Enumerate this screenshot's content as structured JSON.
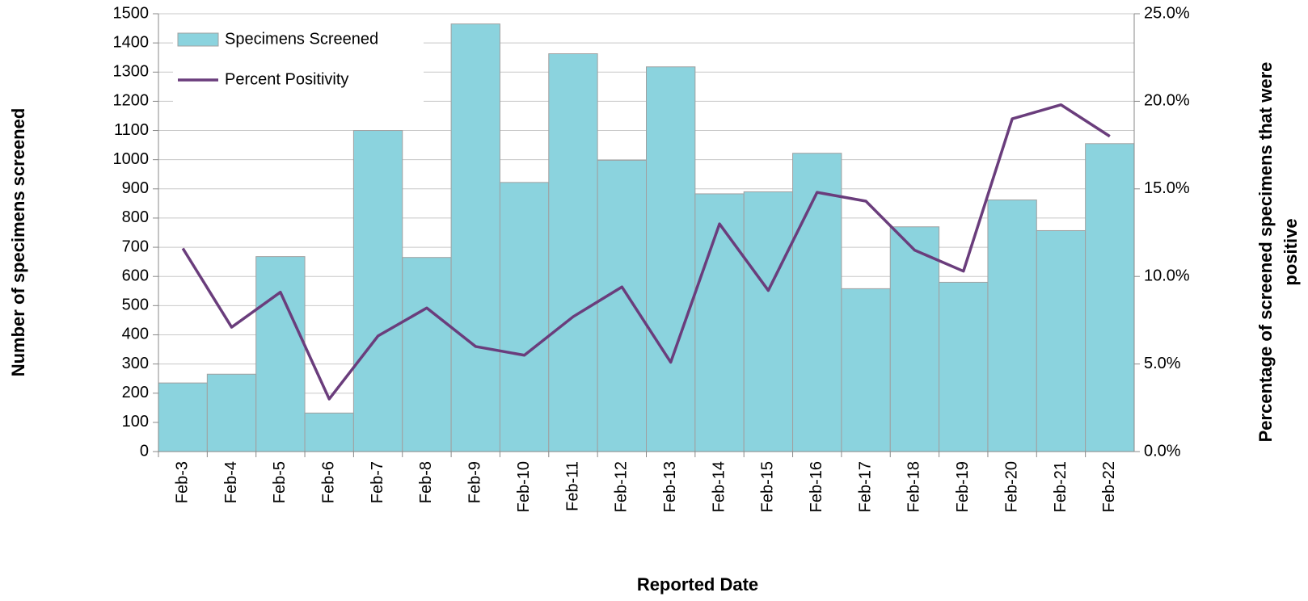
{
  "chart_data": {
    "type": "bar+line",
    "x_label": "Reported Date",
    "y_label": "Number of specimens screened",
    "y2_label": [
      "Percentage of screened specimens that were",
      "positive"
    ],
    "categories": [
      "Feb-3",
      "Feb-4",
      "Feb-5",
      "Feb-6",
      "Feb-7",
      "Feb-8",
      "Feb-9",
      "Feb-10",
      "Feb-11",
      "Feb-12",
      "Feb-13",
      "Feb-14",
      "Feb-15",
      "Feb-16",
      "Feb-17",
      "Feb-18",
      "Feb-19",
      "Feb-20",
      "Feb-21",
      "Feb-22"
    ],
    "series": [
      {
        "name": "Specimens Screened",
        "type": "bar",
        "color": "#8bd3de",
        "values": [
          235,
          265,
          668,
          132,
          1100,
          665,
          1465,
          922,
          1363,
          998,
          1318,
          883,
          890,
          1022,
          558,
          770,
          580,
          862,
          757,
          1055
        ]
      },
      {
        "name": "Percent Positivity",
        "type": "line",
        "axis": "y2",
        "color": "#6a3d7c",
        "values": [
          11.6,
          7.1,
          9.1,
          3.0,
          6.6,
          8.2,
          6.0,
          5.5,
          7.7,
          9.4,
          5.1,
          13.0,
          9.2,
          14.8,
          14.3,
          11.5,
          10.3,
          19.0,
          19.8,
          18.0
        ]
      }
    ],
    "ylim": [
      0,
      1500
    ],
    "yticks": [
      0,
      100,
      200,
      300,
      400,
      500,
      600,
      700,
      800,
      900,
      1000,
      1100,
      1200,
      1300,
      1400,
      1500
    ],
    "y2lim": [
      0,
      25
    ],
    "y2ticks": [
      {
        "value": 0,
        "label": "0.0%"
      },
      {
        "value": 5,
        "label": "5.0%"
      },
      {
        "value": 10,
        "label": "10.0%"
      },
      {
        "value": 15,
        "label": "15.0%"
      },
      {
        "value": 20,
        "label": "20.0%"
      },
      {
        "value": 25,
        "label": "25.0%"
      }
    ],
    "grid": true,
    "legend": "top-left"
  }
}
